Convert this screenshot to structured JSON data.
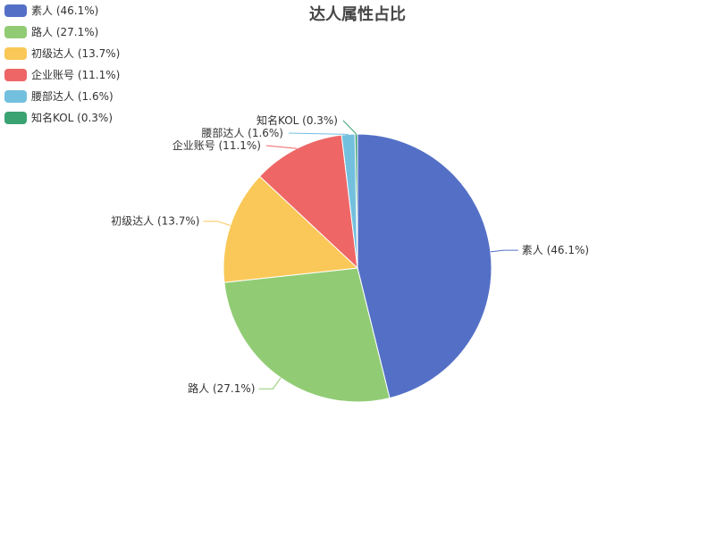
{
  "chart_data": {
    "type": "pie",
    "title": "达人属性占比",
    "legend_position": "top-left",
    "slices": [
      {
        "name": "素人",
        "value": 46.1,
        "label": "素人 (46.1%)",
        "color": "#5470c6"
      },
      {
        "name": "路人",
        "value": 27.1,
        "label": "路人 (27.1%)",
        "color": "#91cc75"
      },
      {
        "name": "初级达人",
        "value": 13.7,
        "label": "初级达人 (13.7%)",
        "color": "#fac858"
      },
      {
        "name": "企业账号",
        "value": 11.1,
        "label": "企业账号 (11.1%)",
        "color": "#ee6666"
      },
      {
        "name": "腰部达人",
        "value": 1.6,
        "label": "腰部达人 (1.6%)",
        "color": "#73c0de"
      },
      {
        "name": "知名KOL",
        "value": 0.3,
        "label": "知名KOL (0.3%)",
        "color": "#3ba272"
      }
    ]
  }
}
